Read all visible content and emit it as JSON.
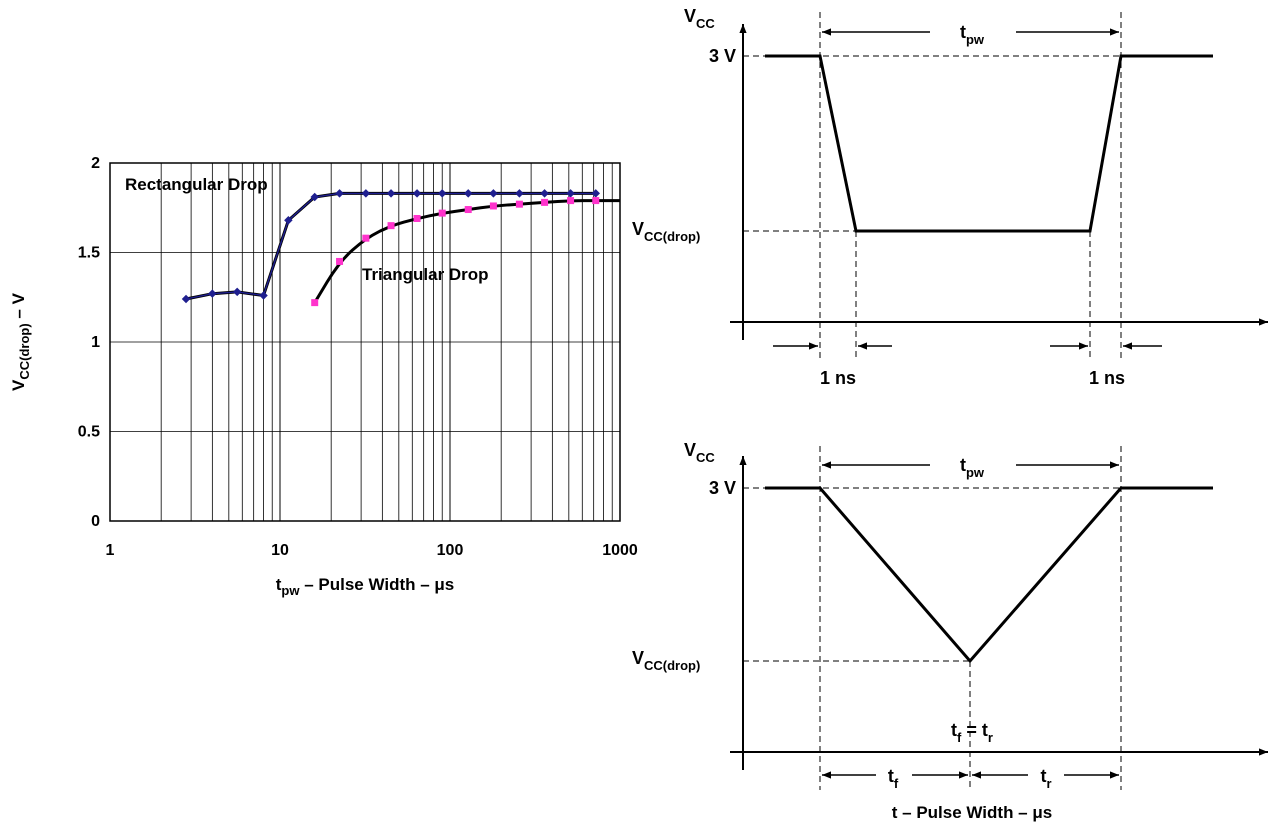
{
  "colors": {
    "background": "#ffffff",
    "rect_series": "#1f1f8f",
    "tri_series": "#ff33cc",
    "line": "#000000"
  },
  "chart_data": [
    {
      "type": "line",
      "title": "",
      "xscale": "log",
      "xlim": [
        1,
        1000
      ],
      "ylim": [
        0,
        2
      ],
      "grid": true,
      "xlabel": {
        "main": "t",
        "sub": "pw",
        "rest": " – Pulse Width – μs"
      },
      "ylabel": {
        "main": "V",
        "sub": "CC(drop)",
        "rest": " – V"
      },
      "xticks": [
        1,
        10,
        100,
        1000
      ],
      "xtick_labels": [
        "1",
        "10",
        "100",
        "1000"
      ],
      "yticks": [
        0,
        0.5,
        1,
        1.5,
        2
      ],
      "ytick_labels": [
        "0",
        "0.5",
        "1",
        "1.5",
        "2"
      ],
      "series": [
        {
          "name": "Rectangular Drop",
          "x": [
            2.8,
            4,
            5.6,
            8,
            11.2,
            16,
            22.4,
            32,
            45,
            64,
            90,
            128,
            180,
            256,
            360,
            512,
            720
          ],
          "y": [
            1.24,
            1.27,
            1.28,
            1.26,
            1.68,
            1.81,
            1.83,
            1.83,
            1.83,
            1.83,
            1.83,
            1.83,
            1.83,
            1.83,
            1.83,
            1.83,
            1.83
          ]
        },
        {
          "name": "Triangular Drop",
          "x": [
            16,
            22.4,
            32,
            45,
            64,
            90,
            128,
            180,
            256,
            360,
            512,
            720
          ],
          "y": [
            1.22,
            1.45,
            1.58,
            1.65,
            1.69,
            1.72,
            1.74,
            1.76,
            1.77,
            1.78,
            1.79,
            1.79
          ]
        }
      ]
    }
  ],
  "waveform_rect": {
    "vcc": {
      "main": "V",
      "sub": "CC"
    },
    "v3": "3 V",
    "vdrop": {
      "main": "V",
      "sub": "CC(drop)"
    },
    "tpw": {
      "main": "t",
      "sub": "pw"
    },
    "ns_left": "1 ns",
    "ns_right": "1 ns"
  },
  "waveform_tri": {
    "vcc": {
      "main": "V",
      "sub": "CC"
    },
    "v3": "3 V",
    "vdrop": {
      "main": "V",
      "sub": "CC(drop)"
    },
    "tpw": {
      "main": "t",
      "sub": "pw"
    },
    "tf": {
      "main": "t",
      "sub": "f"
    },
    "tr": {
      "main": "t",
      "sub": "r"
    },
    "tf_eq_tr": {
      "a": "t",
      "a_sub": "f",
      "eq": " = t",
      "b_sub": "r"
    },
    "xlabel": "t – Pulse Width – μs"
  }
}
